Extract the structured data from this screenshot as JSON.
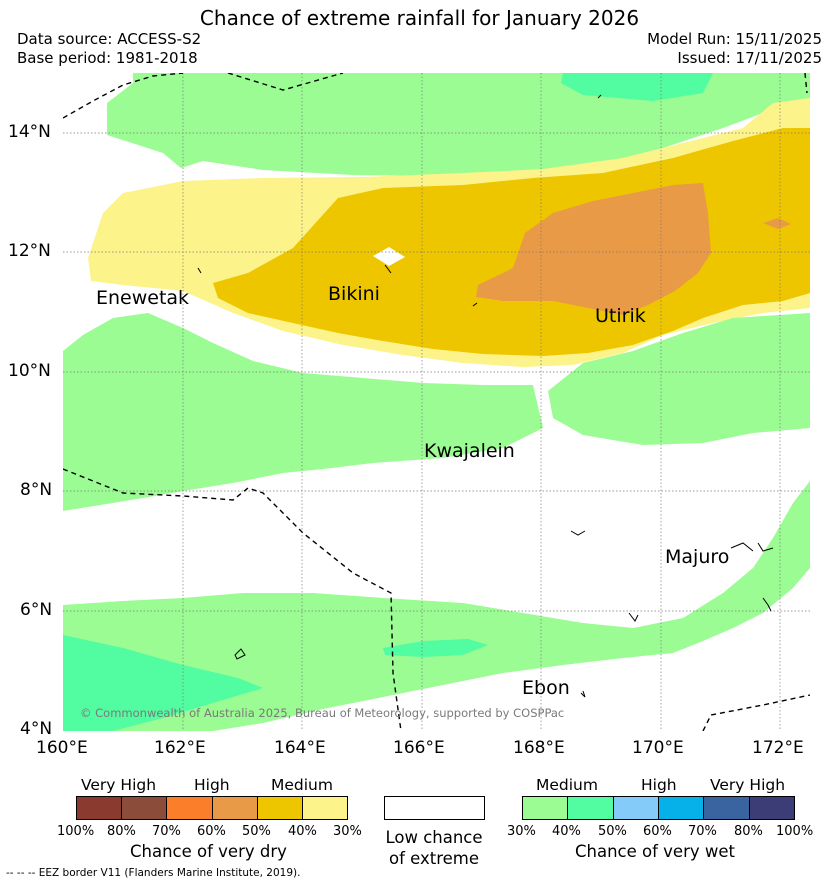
{
  "header": {
    "title": "Chance of extreme rainfall for January 2026",
    "data_source": "Data source: ACCESS-S2",
    "base_period": "Base period: 1981-2018",
    "model_run": "Model Run: 15/11/2025",
    "issued": "Issued: 17/11/2025"
  },
  "axes": {
    "lat_labels": [
      "14°N",
      "12°N",
      "10°N",
      "8°N",
      "6°N",
      "4°N"
    ],
    "lon_labels": [
      "160°E",
      "162°E",
      "164°E",
      "166°E",
      "168°E",
      "170°E",
      "172°E"
    ]
  },
  "places": {
    "enewetak": "Enewetak",
    "bikini": "Bikini",
    "utirik": "Utirik",
    "kwajalein": "Kwajalein",
    "majuro": "Majuro",
    "ebon": "Ebon"
  },
  "copyright": "© Commonwealth of Australia 2025, Bureau of Meteorology, supported by COSPPac",
  "legend": {
    "dry": {
      "title": "Chance of very dry",
      "categories": [
        "Very High",
        "High",
        "Medium"
      ],
      "ticks": [
        "100%",
        "80%",
        "70%",
        "60%",
        "50%",
        "40%",
        "30%"
      ],
      "colors": [
        "#8b3a2f",
        "#8b4c3a",
        "#fb7f2a",
        "#e99a47",
        "#edc600",
        "#fcf38a"
      ]
    },
    "low": {
      "title_line1": "Low chance",
      "title_line2": "of extreme"
    },
    "wet": {
      "title": "Chance of very wet",
      "categories": [
        "Medium",
        "High",
        "Very High"
      ],
      "ticks": [
        "30%",
        "40%",
        "50%",
        "60%",
        "70%",
        "80%",
        "100%"
      ],
      "colors": [
        "#9afc92",
        "#52fca0",
        "#85cbfa",
        "#06b1ea",
        "#3a64a0",
        "#3c3c77"
      ]
    }
  },
  "footer": "-- -- -- EEZ border V11 (Flanders Marine Institute, 2019)."
}
